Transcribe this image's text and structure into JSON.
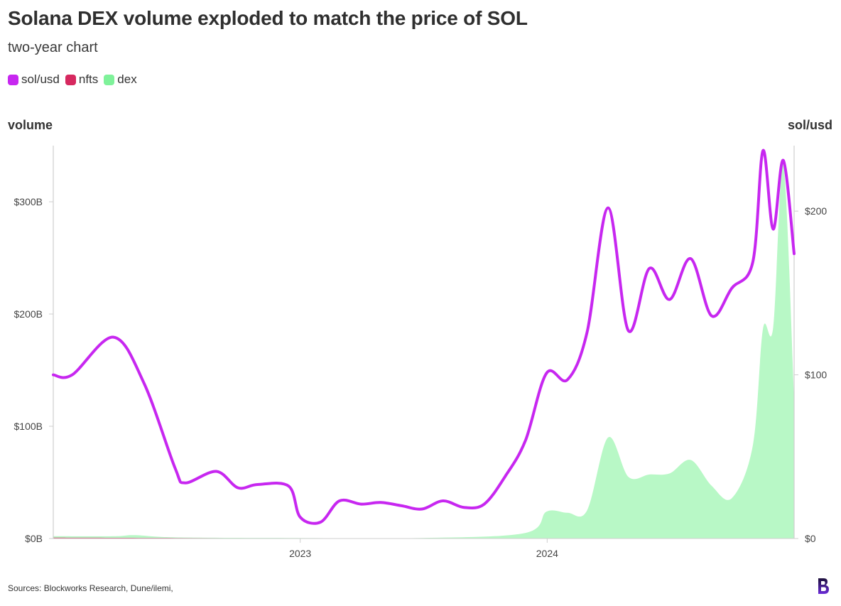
{
  "title": "Solana DEX volume exploded to match the price of SOL",
  "subtitle": "two-year chart",
  "legend": [
    {
      "label": "sol/usd",
      "color": "#c727f0"
    },
    {
      "label": "nfts",
      "color": "#d6285f"
    },
    {
      "label": "dex",
      "color": "#7ff29a"
    }
  ],
  "axis_left_title": "volume",
  "axis_right_title": "sol/usd",
  "source": "Sources: Blockworks Research, Dune/ilemi,",
  "logo_icon": "blockworks-logo",
  "colors": {
    "sol": "#c727f0",
    "nfts": "#d6285f",
    "dex_fill": "#b8f8c6",
    "axis": "#cfcfcf",
    "tick_text": "#444444"
  },
  "chart_data": {
    "type": "line",
    "x_range": [
      "2022-01-01",
      "2024-12-31"
    ],
    "x_ticks": [
      {
        "date": "2023-01-01",
        "label": "2023"
      },
      {
        "date": "2024-01-01",
        "label": "2024"
      }
    ],
    "y_left": {
      "label": "volume",
      "range_billions": [
        0,
        350
      ],
      "ticks": [
        0,
        100,
        200,
        300
      ],
      "tick_labels": [
        "$0B",
        "$100B",
        "$200B",
        "$300B"
      ]
    },
    "y_right": {
      "label": "sol/usd",
      "range_usd": [
        0,
        240
      ],
      "ticks": [
        0,
        100,
        200
      ],
      "tick_labels": [
        "$0",
        "$100",
        "$200"
      ]
    },
    "series": [
      {
        "name": "sol/usd",
        "axis": "right",
        "type": "line",
        "color": "#c727f0",
        "points": [
          [
            "2022-01-01",
            100
          ],
          [
            "2022-01-29",
            100
          ],
          [
            "2022-03-31",
            123
          ],
          [
            "2022-05-15",
            95
          ],
          [
            "2022-06-30",
            43
          ],
          [
            "2022-07-15",
            34
          ],
          [
            "2022-08-30",
            41
          ],
          [
            "2022-10-01",
            31
          ],
          [
            "2022-10-30",
            33
          ],
          [
            "2022-12-15",
            32
          ],
          [
            "2023-01-01",
            13
          ],
          [
            "2023-01-31",
            10
          ],
          [
            "2023-02-28",
            23
          ],
          [
            "2023-04-01",
            21
          ],
          [
            "2023-04-30",
            22
          ],
          [
            "2023-05-31",
            20
          ],
          [
            "2023-06-30",
            18
          ],
          [
            "2023-07-31",
            23
          ],
          [
            "2023-08-31",
            19
          ],
          [
            "2023-09-30",
            21
          ],
          [
            "2023-10-31",
            38
          ],
          [
            "2023-11-30",
            60
          ],
          [
            "2023-12-31",
            101
          ],
          [
            "2024-01-31",
            97
          ],
          [
            "2024-02-29",
            126
          ],
          [
            "2024-03-31",
            202
          ],
          [
            "2024-04-30",
            127
          ],
          [
            "2024-05-31",
            165
          ],
          [
            "2024-06-30",
            146
          ],
          [
            "2024-07-31",
            171
          ],
          [
            "2024-08-31",
            136
          ],
          [
            "2024-09-30",
            153
          ],
          [
            "2024-10-31",
            169
          ],
          [
            "2024-11-15",
            237
          ],
          [
            "2024-11-30",
            189
          ],
          [
            "2024-12-15",
            231
          ],
          [
            "2024-12-31",
            174
          ]
        ]
      },
      {
        "name": "nfts",
        "axis": "left",
        "type": "area",
        "color": "#d6285f",
        "points": [
          [
            "2022-01-01",
            0.8
          ],
          [
            "2022-06-30",
            0.5
          ],
          [
            "2023-01-01",
            0.2
          ],
          [
            "2023-06-30",
            0.1
          ],
          [
            "2024-01-01",
            0.2
          ],
          [
            "2024-06-30",
            0.2
          ],
          [
            "2024-12-31",
            0.3
          ]
        ]
      },
      {
        "name": "dex",
        "axis": "left",
        "type": "area",
        "color": "#7ff29a",
        "points": [
          [
            "2022-01-01",
            2
          ],
          [
            "2022-03-31",
            2
          ],
          [
            "2022-05-01",
            3
          ],
          [
            "2022-06-30",
            1
          ],
          [
            "2022-12-15",
            0.5
          ],
          [
            "2023-06-30",
            0.5
          ],
          [
            "2023-11-30",
            5
          ],
          [
            "2023-12-31",
            24
          ],
          [
            "2024-01-31",
            23
          ],
          [
            "2024-02-29",
            25
          ],
          [
            "2024-03-31",
            90
          ],
          [
            "2024-04-30",
            55
          ],
          [
            "2024-05-31",
            57
          ],
          [
            "2024-06-30",
            58
          ],
          [
            "2024-07-31",
            70
          ],
          [
            "2024-08-31",
            47
          ],
          [
            "2024-09-30",
            36
          ],
          [
            "2024-10-31",
            83
          ],
          [
            "2024-11-15",
            187
          ],
          [
            "2024-11-30",
            188
          ],
          [
            "2024-12-15",
            333
          ],
          [
            "2024-12-31",
            123
          ]
        ]
      }
    ]
  }
}
